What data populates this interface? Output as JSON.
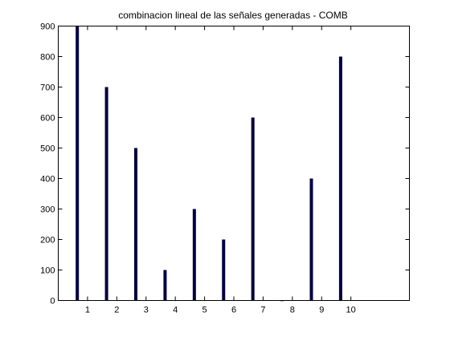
{
  "chart_data": {
    "type": "bar",
    "title": "combinacion lineal de las señales generadas - COMB",
    "xlabel": "",
    "ylabel": "",
    "x": [
      0.65,
      1.65,
      2.65,
      3.65,
      4.65,
      5.65,
      6.65,
      7.65,
      8.65,
      9.65
    ],
    "values": [
      900,
      700,
      500,
      100,
      300,
      200,
      600,
      0,
      400,
      800
    ],
    "xticks": [
      1,
      2,
      3,
      4,
      5,
      6,
      7,
      8,
      9,
      10
    ],
    "yticks": [
      0,
      100,
      200,
      300,
      400,
      500,
      600,
      700,
      800,
      900
    ],
    "xlim": [
      0,
      12
    ],
    "ylim": [
      0,
      900
    ],
    "grid": false,
    "bar_color": "#000040"
  }
}
